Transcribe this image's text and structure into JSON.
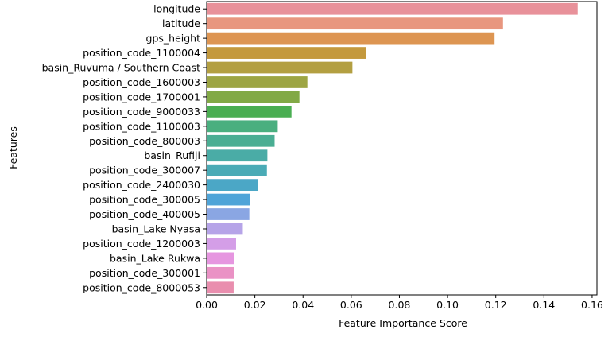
{
  "chart_data": {
    "type": "bar",
    "orientation": "horizontal",
    "xlabel": "Feature Importance Score",
    "ylabel": "Features",
    "xlim": [
      0,
      0.162
    ],
    "xticks": [
      "0.00",
      "0.02",
      "0.04",
      "0.06",
      "0.08",
      "0.10",
      "0.12",
      "0.14",
      "0.16"
    ],
    "xtick_values": [
      0,
      0.02,
      0.04,
      0.06,
      0.08,
      0.1,
      0.12,
      0.14,
      0.16
    ],
    "grid": false,
    "legend": "none",
    "categories": [
      "longitude",
      "latitude",
      "gps_height",
      "position_code_1100004",
      "basin_Ruvuma / Southern Coast",
      "position_code_1600003",
      "position_code_1700001",
      "position_code_9000033",
      "position_code_1100003",
      "position_code_800003",
      "basin_Rufiji",
      "position_code_300007",
      "position_code_2400030",
      "position_code_300005",
      "position_code_400005",
      "basin_Lake Nyasa",
      "position_code_1200003",
      "basin_Lake Rukwa",
      "position_code_300001",
      "position_code_8000053"
    ],
    "values": [
      0.154,
      0.123,
      0.1195,
      0.066,
      0.0605,
      0.0418,
      0.0385,
      0.0352,
      0.0295,
      0.0282,
      0.0252,
      0.025,
      0.0212,
      0.018,
      0.0177,
      0.015,
      0.0122,
      0.0115,
      0.0114,
      0.0112
    ],
    "colors": [
      "#e8919a",
      "#e8967f",
      "#dd9552",
      "#c4993d",
      "#b39f41",
      "#9da543",
      "#82a946",
      "#4aae52",
      "#4aaf7f",
      "#4aae93",
      "#4aaca6",
      "#4aabb6",
      "#4ba7c6",
      "#4fa4d8",
      "#8aa6e3",
      "#b6a4e8",
      "#d49ee7",
      "#e696e0",
      "#ea92c5",
      "#e98eae"
    ]
  }
}
